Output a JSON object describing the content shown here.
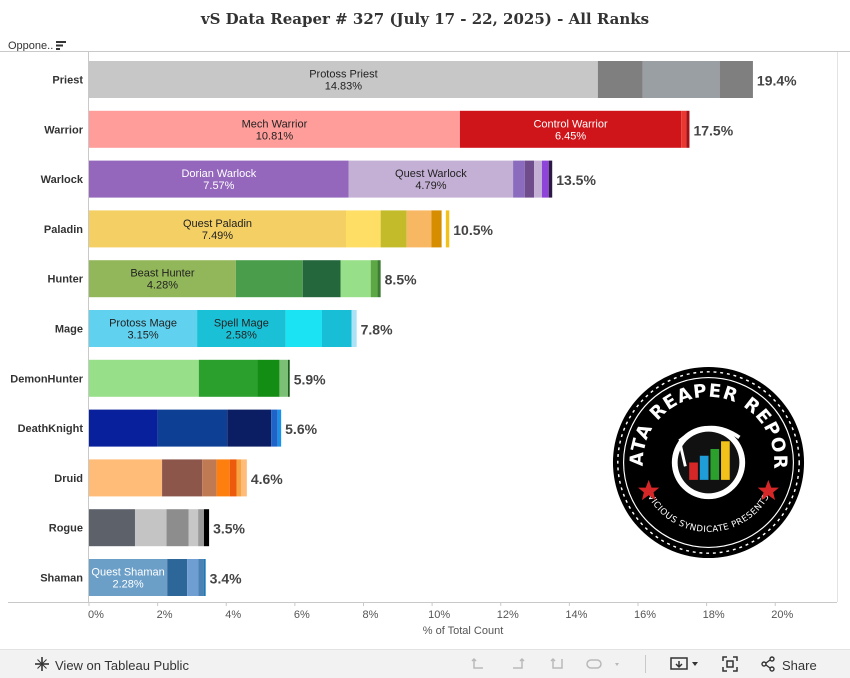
{
  "title": "vS Data Reaper # 327 (July 17 - 22, 2025) - All Ranks",
  "row_header": "Oppone..",
  "chart_data": {
    "type": "bar",
    "orientation": "horizontal",
    "stacked": true,
    "xlabel": "% of Total Count",
    "xlim": [
      0,
      21.8
    ],
    "x_ticks": [
      "0%",
      "2%",
      "4%",
      "6%",
      "8%",
      "10%",
      "12%",
      "14%",
      "16%",
      "18%",
      "20%"
    ],
    "x_tick_values": [
      0,
      2,
      4,
      6,
      8,
      10,
      12,
      14,
      16,
      18,
      20
    ],
    "categories": [
      "Priest",
      "Warrior",
      "Warlock",
      "Paladin",
      "Hunter",
      "Mage",
      "DemonHunter",
      "DeathKnight",
      "Druid",
      "Rogue",
      "Shaman"
    ],
    "totals": [
      "19.4%",
      "17.5%",
      "13.5%",
      "10.5%",
      "8.5%",
      "7.8%",
      "5.9%",
      "5.6%",
      "4.6%",
      "3.5%",
      "3.4%"
    ],
    "bars": [
      {
        "class": "Priest",
        "segments": [
          {
            "name": "Protoss Priest",
            "value": 14.83,
            "label": "14.83%",
            "color": "#c7c7c7",
            "text_color": "#222222"
          },
          {
            "value": 1.31,
            "color": "#7f7f7f"
          },
          {
            "value": 2.24,
            "color": "#999fa3"
          },
          {
            "value": 0.97,
            "color": "#7f7f7f"
          }
        ]
      },
      {
        "class": "Warrior",
        "segments": [
          {
            "name": "Mech Warrior",
            "value": 10.81,
            "label": "10.81%",
            "color": "#ff9d9a",
            "text_color": "#222222"
          },
          {
            "name": "Control Warrior",
            "value": 6.45,
            "label": "6.45%",
            "color": "#d0151a",
            "text_color": "#ffffff"
          },
          {
            "value": 0.15,
            "color": "#e8382f"
          },
          {
            "value": 0.09,
            "color": "#a31015"
          }
        ]
      },
      {
        "class": "Warlock",
        "segments": [
          {
            "name": "Dorian Warlock",
            "value": 7.57,
            "label": "7.57%",
            "color": "#9467bd",
            "text_color": "#ffffff"
          },
          {
            "name": "Quest Warlock",
            "value": 4.79,
            "label": "4.79%",
            "color": "#c5b0d5",
            "text_color": "#222222"
          },
          {
            "value": 0.34,
            "color": "#8a6bbe"
          },
          {
            "value": 0.27,
            "color": "#6f4c8c"
          },
          {
            "value": 0.23,
            "color": "#c5b0d5"
          },
          {
            "value": 0.2,
            "color": "#8e44d8"
          },
          {
            "value": 0.1,
            "color": "#2c1a45"
          }
        ]
      },
      {
        "class": "Paladin",
        "segments": [
          {
            "name": "Quest Paladin",
            "value": 7.49,
            "label": "7.49%",
            "color": "#f3cf64",
            "text_color": "#222222"
          },
          {
            "value": 1.01,
            "color": "#ffde66"
          },
          {
            "value": 0.76,
            "color": "#c4bb2a"
          },
          {
            "value": 0.72,
            "color": "#f8b863"
          },
          {
            "value": 0.3,
            "color": "#d68d00"
          },
          {
            "value": 0.12,
            "color": "#ffffff"
          },
          {
            "value": 0.1,
            "color": "#f2c21a"
          }
        ]
      },
      {
        "class": "Hunter",
        "segments": [
          {
            "name": "Beast Hunter",
            "value": 4.28,
            "label": "4.28%",
            "color": "#92b75a",
            "text_color": "#222222"
          },
          {
            "value": 1.95,
            "color": "#4a9d4a"
          },
          {
            "value": 1.1,
            "color": "#24673c"
          },
          {
            "value": 0.88,
            "color": "#98df8a"
          },
          {
            "value": 0.2,
            "color": "#5da744"
          },
          {
            "value": 0.09,
            "color": "#3a7d33"
          }
        ]
      },
      {
        "class": "Mage",
        "segments": [
          {
            "name": "Protoss Mage",
            "value": 3.15,
            "label": "3.15%",
            "color": "#60d2f0",
            "text_color": "#222222"
          },
          {
            "name": "Spell Mage",
            "value": 2.58,
            "label": "2.58%",
            "color": "#1ac1d6",
            "text_color": "#222222"
          },
          {
            "value": 1.06,
            "color": "#1ce3f3"
          },
          {
            "value": 0.86,
            "color": "#18bdd6"
          },
          {
            "value": 0.15,
            "color": "#abe2f5"
          }
        ]
      },
      {
        "class": "DemonHunter",
        "segments": [
          {
            "value": 3.2,
            "color": "#98df8a"
          },
          {
            "value": 1.7,
            "color": "#2ca02c"
          },
          {
            "value": 0.65,
            "color": "#138d13"
          },
          {
            "value": 0.25,
            "color": "#7bc075"
          },
          {
            "value": 0.05,
            "color": "#1a5c1a"
          }
        ]
      },
      {
        "class": "DeathKnight",
        "segments": [
          {
            "value": 2.0,
            "color": "#08209b"
          },
          {
            "value": 2.03,
            "color": "#0d3f95"
          },
          {
            "value": 1.28,
            "color": "#0c1e63"
          },
          {
            "value": 0.19,
            "color": "#1e64c8"
          },
          {
            "value": 0.1,
            "color": "#1a90e8"
          }
        ]
      },
      {
        "class": "Druid",
        "segments": [
          {
            "value": 2.13,
            "color": "#ffbb78"
          },
          {
            "value": 1.17,
            "color": "#8c564b"
          },
          {
            "value": 0.42,
            "color": "#c07a53"
          },
          {
            "value": 0.38,
            "color": "#ff7f0e"
          },
          {
            "value": 0.2,
            "color": "#ee5a0b"
          },
          {
            "value": 0.13,
            "color": "#f6a443"
          },
          {
            "value": 0.17,
            "color": "#ffbb78"
          }
        ]
      },
      {
        "class": "Rogue",
        "segments": [
          {
            "value": 1.34,
            "color": "#5d616a"
          },
          {
            "value": 0.92,
            "color": "#c4c4c4"
          },
          {
            "value": 0.64,
            "color": "#8d8d8d"
          },
          {
            "value": 0.28,
            "color": "#c7c7c7"
          },
          {
            "value": 0.17,
            "color": "#9a9a9a"
          },
          {
            "value": 0.15,
            "color": "#000000"
          }
        ]
      },
      {
        "class": "Shaman",
        "segments": [
          {
            "name": "Quest Shaman",
            "value": 2.28,
            "label": "2.28%",
            "color": "#6b9fc8",
            "text_color": "#ffffff"
          },
          {
            "value": 0.58,
            "color": "#2d6699"
          },
          {
            "value": 0.33,
            "color": "#6e9ed2"
          },
          {
            "value": 0.15,
            "color": "#4b82b4"
          },
          {
            "value": 0.06,
            "color": "#1f77b4"
          }
        ]
      }
    ]
  },
  "logo": {
    "top_text": "DATA REAPER REPORT",
    "bottom_text": "VICIOUS SYNDICATE PRESENTS"
  },
  "toolbar": {
    "view_label": "View on Tableau Public",
    "share_label": "Share"
  }
}
